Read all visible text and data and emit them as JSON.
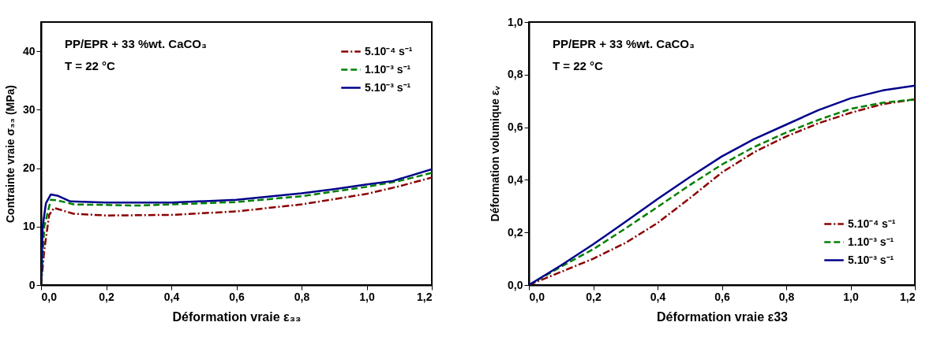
{
  "chart_data": [
    {
      "type": "line",
      "xlabel": "Déformation vraie ε₃₃",
      "ylabel": "Contrainte vraie σ₃₃ (MPa)",
      "annotations": [
        "PP/EPR + 33 %wt. CaCO₃",
        "T = 22 °C"
      ],
      "xlim": [
        0,
        1.2
      ],
      "xticks": [
        {
          "value": 0,
          "label": "0,0"
        },
        {
          "value": 0.2,
          "label": "0,2"
        },
        {
          "value": 0.4,
          "label": "0,4"
        },
        {
          "value": 0.6,
          "label": "0,6"
        },
        {
          "value": 0.8,
          "label": "0,8"
        },
        {
          "value": 1.0,
          "label": "1,0"
        },
        {
          "value": 1.2,
          "label": "1,2"
        }
      ],
      "ylim": [
        0,
        45
      ],
      "yticks": [
        0,
        10,
        20,
        30,
        40
      ],
      "legend": "top right",
      "grid": false,
      "series": [
        {
          "name": "5.10⁻⁴ s⁻¹",
          "color": "#8b0000",
          "line_style": "dashdot",
          "x": [
            0,
            0.01,
            0.025,
            0.04,
            0.1,
            0.2,
            0.4,
            0.6,
            0.8,
            1.0,
            1.1,
            1.2
          ],
          "values": [
            0,
            6,
            12,
            13.2,
            12.2,
            11.9,
            12.0,
            12.6,
            13.8,
            15.6,
            16.9,
            18.4
          ]
        },
        {
          "name": "1.10⁻³ s⁻¹",
          "color": "#008000",
          "line_style": "dashed",
          "x": [
            0,
            0.01,
            0.03,
            0.05,
            0.1,
            0.3,
            0.6,
            0.8,
            1.0,
            1.1,
            1.2
          ],
          "values": [
            0,
            10,
            14.6,
            14.5,
            13.8,
            13.6,
            14.2,
            15.2,
            16.8,
            17.8,
            19.2
          ]
        },
        {
          "name": "5.10⁻³ s⁻¹",
          "color": "#00008b",
          "line_style": "solid",
          "x": [
            0,
            0.005,
            0.015,
            0.03,
            0.05,
            0.09,
            0.2,
            0.4,
            0.6,
            0.8,
            0.9,
            1.0,
            1.08,
            1.2
          ],
          "values": [
            0,
            10,
            14,
            15.5,
            15.3,
            14.3,
            14.1,
            14.1,
            14.6,
            15.7,
            16.4,
            17.2,
            17.8,
            19.8
          ]
        }
      ]
    },
    {
      "type": "line",
      "xlabel": "Déformation vraie ε33",
      "ylabel": "Déformation volumique εᵥ",
      "annotations": [
        "PP/EPR + 33 %wt. CaCO₃",
        "T = 22 °C"
      ],
      "xlim": [
        0,
        1.2
      ],
      "xticks": [
        {
          "value": 0,
          "label": "0,0"
        },
        {
          "value": 0.2,
          "label": "0,2"
        },
        {
          "value": 0.4,
          "label": "0,4"
        },
        {
          "value": 0.6,
          "label": "0,6"
        },
        {
          "value": 0.8,
          "label": "0,8"
        },
        {
          "value": 1.0,
          "label": "1,0"
        },
        {
          "value": 1.2,
          "label": "1,2"
        }
      ],
      "ylim": [
        0,
        1.0
      ],
      "yticks": [
        {
          "value": 0,
          "label": "0,0"
        },
        {
          "value": 0.2,
          "label": "0,2"
        },
        {
          "value": 0.4,
          "label": "0,4"
        },
        {
          "value": 0.6,
          "label": "0,6"
        },
        {
          "value": 0.8,
          "label": "0,8"
        },
        {
          "value": 1.0,
          "label": "1,0"
        }
      ],
      "legend": "bottom right",
      "grid": false,
      "series": [
        {
          "name": "5.10⁻⁴ s⁻¹",
          "color": "#8b0000",
          "line_style": "dashdot",
          "x": [
            0,
            0.1,
            0.2,
            0.3,
            0.4,
            0.5,
            0.6,
            0.7,
            0.8,
            0.9,
            1.0,
            1.1,
            1.2
          ],
          "values": [
            0,
            0.05,
            0.1,
            0.16,
            0.236,
            0.33,
            0.428,
            0.505,
            0.565,
            0.615,
            0.655,
            0.688,
            0.706
          ]
        },
        {
          "name": "1.10⁻³ s⁻¹",
          "color": "#008000",
          "line_style": "dashed",
          "x": [
            0,
            0.1,
            0.2,
            0.3,
            0.4,
            0.5,
            0.6,
            0.7,
            0.8,
            0.9,
            1.0,
            1.1,
            1.2
          ],
          "values": [
            0,
            0.07,
            0.136,
            0.215,
            0.297,
            0.38,
            0.458,
            0.525,
            0.58,
            0.628,
            0.67,
            0.693,
            0.706
          ]
        },
        {
          "name": "5.10⁻³ s⁻¹",
          "color": "#00008b",
          "line_style": "solid",
          "x": [
            0,
            0.1,
            0.2,
            0.3,
            0.4,
            0.5,
            0.6,
            0.7,
            0.8,
            0.9,
            1.0,
            1.1,
            1.2
          ],
          "values": [
            0,
            0.075,
            0.155,
            0.24,
            0.327,
            0.41,
            0.489,
            0.555,
            0.61,
            0.665,
            0.71,
            0.74,
            0.758
          ]
        }
      ]
    }
  ]
}
